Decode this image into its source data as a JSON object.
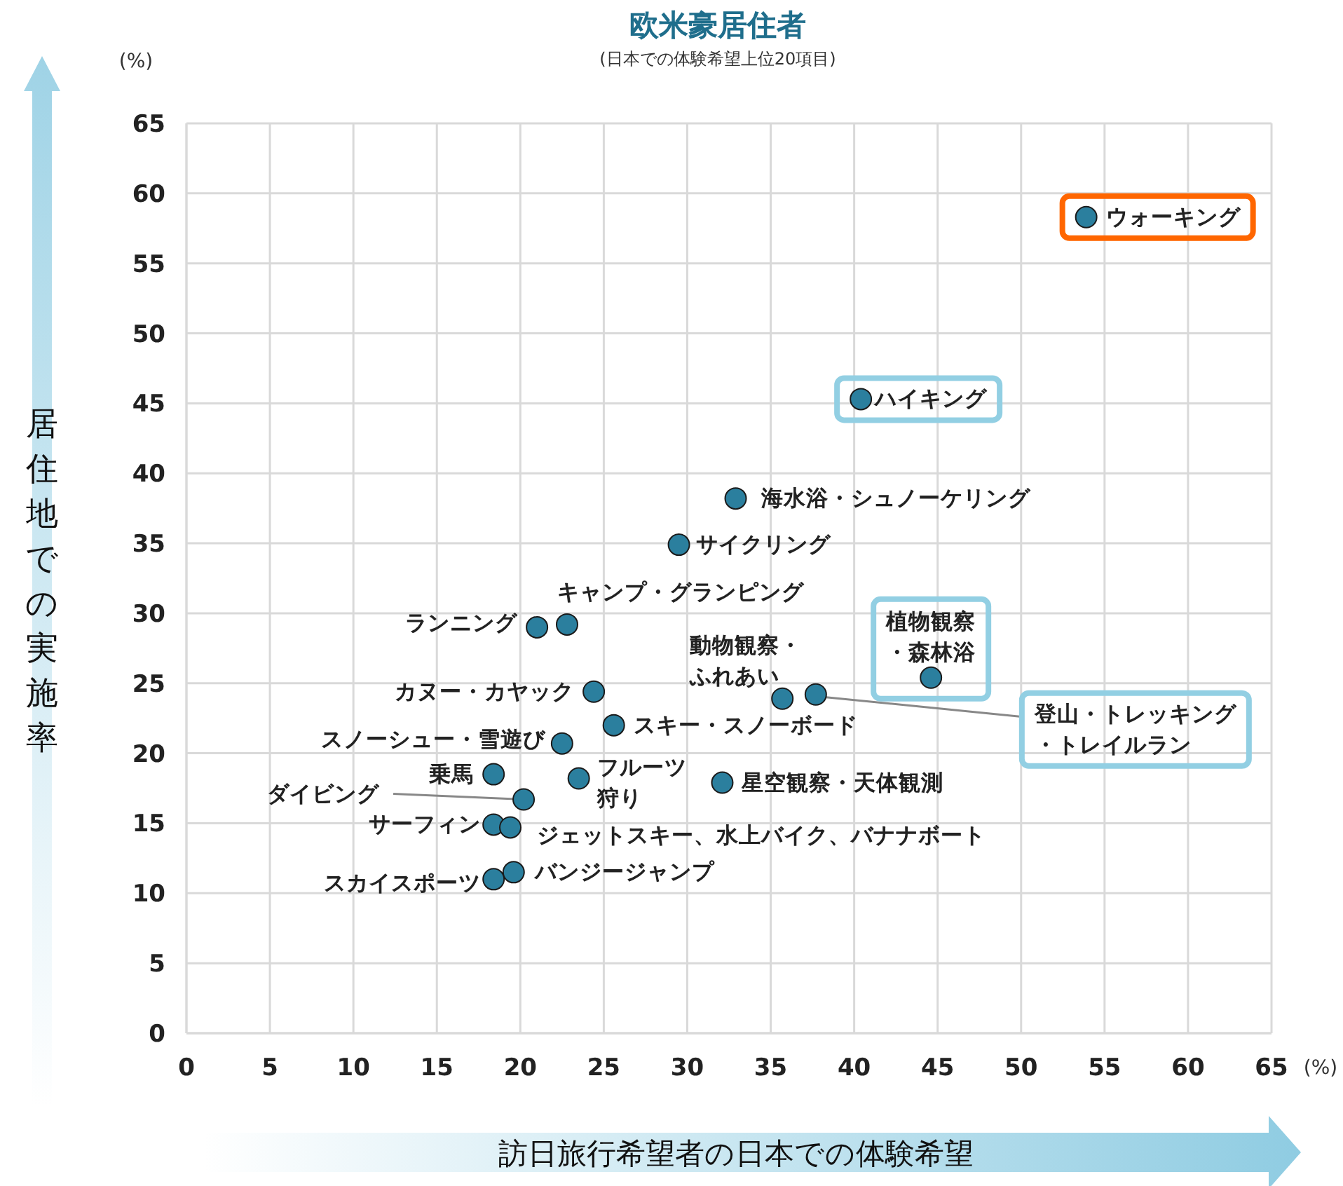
{
  "chart_data": {
    "type": "scatter",
    "title": "欧米豪居住者",
    "subtitle": "(日本での体験希望上位20項目)",
    "xlabel": "訪日旅行希望者の日本での体験希望",
    "ylabel": "居住地での実施率",
    "x": [
      53.9,
      40.4,
      32.9,
      29.5,
      22.8,
      21.0,
      35.7,
      37.7,
      44.6,
      24.4,
      25.6,
      22.5,
      18.4,
      23.5,
      32.1,
      20.2,
      18.4,
      19.4,
      18.4,
      19.6
    ],
    "series": [
      {
        "color": "#2b7f9e",
        "values": [
          58.3,
          45.3,
          38.2,
          34.9,
          29.2,
          29.0,
          23.9,
          24.2,
          25.4,
          24.4,
          22.0,
          20.7,
          18.5,
          18.2,
          17.9,
          16.7,
          14.9,
          14.7,
          11.0,
          11.5
        ]
      }
    ],
    "annotations": [
      {
        "text": "ウォーキング",
        "x": 53.9,
        "y": 58.3
      },
      {
        "text": "ハイキング",
        "x": 40.4,
        "y": 45.3
      },
      {
        "text": "海水浴・シュノーケリング",
        "x": 32.9,
        "y": 38.2
      },
      {
        "text": "サイクリング",
        "x": 29.5,
        "y": 34.9
      },
      {
        "text": "キャンプ・グランピング",
        "x": 22.8,
        "y": 29.2
      },
      {
        "text": "ランニング",
        "x": 21.0,
        "y": 29.0
      },
      {
        "text": "動物観察・ふれあい",
        "x": 35.7,
        "y": 23.9
      },
      {
        "text": "登山・トレッキング・トレイルラン",
        "x": 37.7,
        "y": 24.2
      },
      {
        "text": "植物観察・森林浴",
        "x": 44.6,
        "y": 25.4
      },
      {
        "text": "カヌー・カヤック",
        "x": 24.4,
        "y": 24.4
      },
      {
        "text": "スキー・スノーボード",
        "x": 25.6,
        "y": 22.0
      },
      {
        "text": "スノーシュー・雪遊び",
        "x": 22.5,
        "y": 20.7
      },
      {
        "text": "乗馬",
        "x": 18.4,
        "y": 18.5
      },
      {
        "text": "フルーツ狩り",
        "x": 23.5,
        "y": 18.2
      },
      {
        "text": "星空観察・天体観測",
        "x": 32.1,
        "y": 17.9
      },
      {
        "text": "ダイビング",
        "x": 20.2,
        "y": 16.7
      },
      {
        "text": "サーフィン",
        "x": 18.4,
        "y": 14.9
      },
      {
        "text": "ジェットスキー、水上バイク、バナナボート",
        "x": 19.4,
        "y": 14.7
      },
      {
        "text": "スカイスポーツ",
        "x": 18.4,
        "y": 11.0
      },
      {
        "text": "バンジージャンプ",
        "x": 19.6,
        "y": 11.5
      },
      "(%)",
      "(%)"
    ],
    "xlim": [
      0,
      65
    ],
    "ylim": [
      0,
      65
    ],
    "xticks": [
      0,
      5,
      10,
      15,
      20,
      25,
      30,
      35,
      40,
      45,
      50,
      55,
      60,
      65
    ],
    "yticks": [
      0,
      5,
      10,
      15,
      20,
      25,
      30,
      35,
      40,
      45,
      50,
      55,
      60,
      65
    ],
    "grid": true,
    "marker": "circle"
  }
}
